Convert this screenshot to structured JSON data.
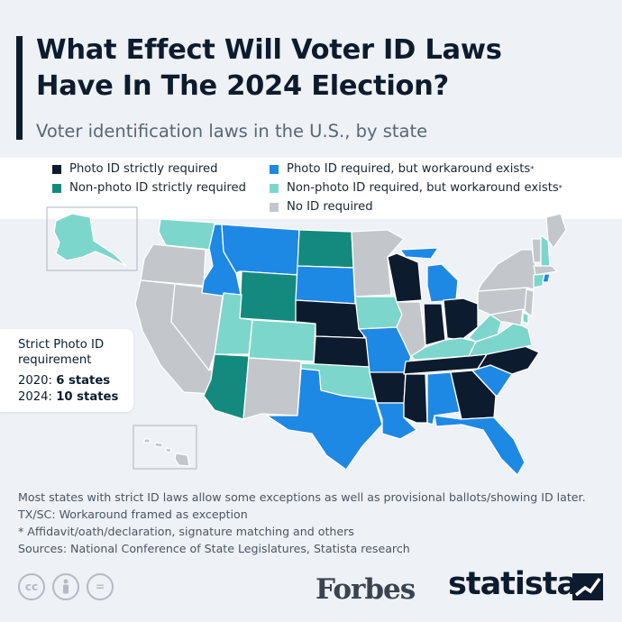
{
  "header": {
    "title_line1": "What Effect Will Voter ID Laws",
    "title_line2": "Have In The 2024 Election?",
    "subtitle": "Voter identification laws in the U.S., by state"
  },
  "legend": [
    {
      "label": "Photo ID strictly required",
      "color": "#0d1b2e"
    },
    {
      "label": "Non-photo ID strictly required",
      "color": "#148a7e"
    },
    {
      "label": "Photo ID required, but workaround exists",
      "marker": "*",
      "color": "#1e88e5"
    },
    {
      "label": "Non-photo ID required, but workaround exists",
      "marker": "*",
      "color": "#7dd6cb"
    },
    {
      "label": "No ID required",
      "color": "#c3c7cc"
    }
  ],
  "callout": {
    "heading": "Strict Photo ID requirement",
    "line2020_label": "2020:",
    "line2020_value": "6 states",
    "line2024_label": "2024:",
    "line2024_value": "10 states"
  },
  "notes": [
    "Most states with strict ID laws allow some exceptions as well as provisional ballots/showing ID later.",
    "TX/SC: Workaround framed as exception",
    "* Affidavit/oath/declaration, signature matching and others",
    "Sources: National Conference of State Legislatures, Statista research"
  ],
  "footer": {
    "icons": [
      "cc-icon",
      "attribution-icon",
      "no-derivatives-icon"
    ],
    "cc_text": "cc",
    "equal_text": "=",
    "forbes": "Forbes",
    "statista": "statista"
  },
  "colors": {
    "strict_photo": "#0d1b2e",
    "strict_nonphoto": "#148a7e",
    "photo_workaround": "#1e88e5",
    "nonphoto_workaround": "#7dd6cb",
    "no_id": "#c3c7cc"
  },
  "map": {
    "states": {
      "WA": "nonphoto_workaround",
      "OR": "no_id",
      "CA": "no_id",
      "NV": "no_id",
      "ID": "photo_workaround",
      "MT": "photo_workaround",
      "WY": "strict_nonphoto",
      "UT": "nonphoto_workaround",
      "CO": "nonphoto_workaround",
      "AZ": "strict_nonphoto",
      "NM": "no_id",
      "ND": "strict_nonphoto",
      "SD": "photo_workaround",
      "NE": "strict_photo",
      "KS": "strict_photo",
      "OK": "nonphoto_workaround",
      "TX": "photo_workaround",
      "MN": "no_id",
      "IA": "nonphoto_workaround",
      "MO": "photo_workaround",
      "AR": "strict_photo",
      "LA": "photo_workaround",
      "WI": "strict_photo",
      "IL": "no_id",
      "MI": "photo_workaround",
      "IN": "strict_photo",
      "OH": "strict_photo",
      "KY": "nonphoto_workaround",
      "TN": "strict_photo",
      "MS": "strict_photo",
      "AL": "photo_workaround",
      "GA": "strict_photo",
      "FL": "photo_workaround",
      "SC": "photo_workaround",
      "NC": "strict_photo",
      "VA": "nonphoto_workaround",
      "WV": "nonphoto_workaround",
      "PA": "no_id",
      "NY": "no_id",
      "VT": "no_id",
      "NH": "nonphoto_workaround",
      "ME": "no_id",
      "MA": "no_id",
      "RI": "photo_workaround",
      "CT": "nonphoto_workaround",
      "NJ": "no_id",
      "DE": "nonphoto_workaround",
      "MD": "no_id",
      "AK": "nonphoto_workaround",
      "HI": "no_id"
    }
  }
}
